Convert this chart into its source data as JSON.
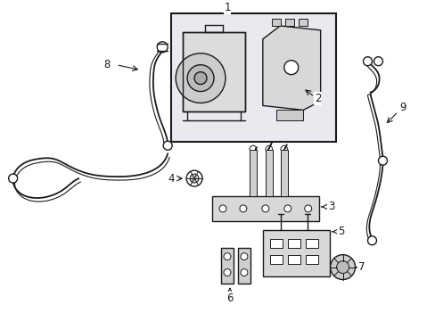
{
  "background_color": "#ffffff",
  "line_color": "#1a1a1a",
  "box_fill": "#e8eaf0",
  "fig_width": 4.89,
  "fig_height": 3.6,
  "dpi": 100,
  "border_color": "#555555",
  "part_fill": "#d4d4d4",
  "label_fs": 8.5
}
